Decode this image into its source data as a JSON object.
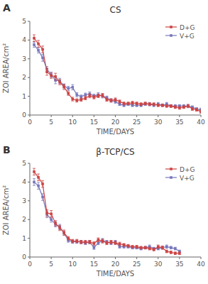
{
  "chart_data": [
    {
      "type": "line",
      "title": "CS",
      "annotations": [
        "A"
      ],
      "xlabel": "TIME/DAYS",
      "ylabel": "ZOI AREA/cm²",
      "xlim": [
        0,
        40
      ],
      "xticks": [
        0,
        5,
        10,
        15,
        20,
        25,
        30,
        35,
        40
      ],
      "ylim": [
        0,
        5
      ],
      "yticks": [
        0,
        1,
        2,
        3,
        4,
        5
      ],
      "grid": false,
      "legend": "upper right",
      "marker": "square",
      "x": [
        1,
        2,
        3,
        4,
        5,
        6,
        7,
        8,
        9,
        10,
        11,
        12,
        13,
        14,
        15,
        16,
        17,
        18,
        19,
        20,
        21,
        22,
        23,
        24,
        25,
        26,
        27,
        28,
        29,
        30,
        31,
        32,
        33,
        34,
        35,
        36,
        37,
        38,
        39,
        40
      ],
      "series": [
        {
          "name": "D+G",
          "color": "#cc4444",
          "values": [
            4.1,
            3.8,
            3.5,
            2.3,
            2.1,
            2.05,
            1.75,
            1.5,
            1.15,
            0.85,
            0.78,
            0.82,
            0.9,
            1.02,
            0.95,
            1.02,
            1.05,
            0.82,
            0.78,
            0.82,
            0.72,
            0.62,
            0.62,
            0.65,
            0.62,
            0.58,
            0.62,
            0.58,
            0.58,
            0.52,
            0.52,
            0.48,
            0.48,
            0.42,
            0.38,
            0.42,
            0.48,
            0.32,
            0.28,
            0.18
          ],
          "errors": [
            0.18,
            0.18,
            0.18,
            0.18,
            0.14,
            0.18,
            0.14,
            0.14,
            0.1,
            0.1,
            0.09,
            0.09,
            0.09,
            0.1,
            0.09,
            0.09,
            0.1,
            0.09,
            0.09,
            0.09,
            0.08,
            0.07,
            0.07,
            0.08,
            0.07,
            0.07,
            0.07,
            0.07,
            0.07,
            0.07,
            0.07,
            0.07,
            0.07,
            0.07,
            0.07,
            0.07,
            0.09,
            0.07,
            0.07,
            0.09
          ]
        },
        {
          "name": "V+G",
          "color": "#7777bb",
          "values": [
            3.75,
            3.45,
            3.05,
            2.45,
            2.15,
            1.85,
            1.82,
            1.55,
            1.42,
            1.48,
            1.08,
            0.98,
            1.08,
            1.12,
            1.02,
            1.08,
            1.02,
            0.92,
            0.78,
            0.72,
            0.58,
            0.52,
            0.58,
            0.52,
            0.52,
            0.52,
            0.58,
            0.58,
            0.52,
            0.58,
            0.52,
            0.58,
            0.48,
            0.48,
            0.48,
            0.48,
            0.48,
            0.42,
            0.32,
            0.28
          ],
          "errors": [
            0.14,
            0.14,
            0.18,
            0.14,
            0.14,
            0.18,
            0.14,
            0.11,
            0.11,
            0.14,
            0.11,
            0.09,
            0.09,
            0.11,
            0.09,
            0.11,
            0.11,
            0.09,
            0.09,
            0.09,
            0.07,
            0.07,
            0.07,
            0.07,
            0.07,
            0.07,
            0.07,
            0.09,
            0.07,
            0.09,
            0.07,
            0.09,
            0.07,
            0.07,
            0.07,
            0.07,
            0.07,
            0.07,
            0.07,
            0.09
          ]
        }
      ]
    },
    {
      "type": "line",
      "title": "β-TCP/CS",
      "annotations": [
        "B"
      ],
      "xlabel": "TIME/DAYS",
      "ylabel": "ZOI AREA/cm²",
      "xlim": [
        0,
        40
      ],
      "xticks": [
        0,
        5,
        10,
        15,
        20,
        25,
        30,
        35,
        40
      ],
      "ylim": [
        0,
        5
      ],
      "yticks": [
        0,
        1,
        2,
        3,
        4,
        5
      ],
      "grid": false,
      "legend": "upper right",
      "marker": "square",
      "x": [
        1,
        2,
        3,
        4,
        5,
        6,
        7,
        8,
        9,
        10,
        11,
        12,
        13,
        14,
        15,
        16,
        17,
        18,
        19,
        20,
        21,
        22,
        23,
        24,
        25,
        26,
        27,
        28,
        29,
        30,
        31,
        32,
        33,
        34,
        35
      ],
      "series": [
        {
          "name": "D+G",
          "color": "#cc4444",
          "values": [
            4.55,
            4.25,
            3.9,
            2.35,
            2.3,
            1.8,
            1.55,
            1.3,
            1.0,
            0.85,
            0.85,
            0.8,
            0.8,
            0.8,
            0.72,
            0.92,
            0.85,
            0.75,
            0.8,
            0.75,
            0.7,
            0.65,
            0.6,
            0.55,
            0.55,
            0.5,
            0.5,
            0.45,
            0.4,
            0.55,
            0.5,
            0.3,
            0.25,
            0.2,
            0.2
          ],
          "errors": [
            0.18,
            0.18,
            0.18,
            0.18,
            0.18,
            0.14,
            0.14,
            0.14,
            0.09,
            0.09,
            0.09,
            0.09,
            0.09,
            0.09,
            0.09,
            0.1,
            0.1,
            0.09,
            0.09,
            0.09,
            0.09,
            0.07,
            0.07,
            0.07,
            0.07,
            0.07,
            0.07,
            0.07,
            0.07,
            0.09,
            0.09,
            0.07,
            0.07,
            0.07,
            0.07
          ]
        },
        {
          "name": "V+G",
          "color": "#7777bb",
          "values": [
            4.0,
            3.8,
            3.2,
            2.28,
            2.0,
            1.75,
            1.6,
            1.28,
            0.88,
            0.82,
            0.82,
            0.8,
            0.75,
            0.8,
            0.5,
            0.75,
            0.88,
            0.8,
            0.75,
            0.8,
            0.55,
            0.55,
            0.55,
            0.5,
            0.5,
            0.45,
            0.5,
            0.55,
            0.45,
            0.45,
            0.5,
            0.55,
            0.5,
            0.45,
            0.3
          ],
          "errors": [
            0.18,
            0.18,
            0.18,
            0.18,
            0.14,
            0.14,
            0.14,
            0.11,
            0.09,
            0.09,
            0.09,
            0.09,
            0.09,
            0.09,
            0.09,
            0.09,
            0.11,
            0.09,
            0.09,
            0.09,
            0.07,
            0.07,
            0.07,
            0.07,
            0.07,
            0.07,
            0.07,
            0.09,
            0.07,
            0.07,
            0.07,
            0.09,
            0.07,
            0.07,
            0.07
          ]
        }
      ]
    }
  ]
}
